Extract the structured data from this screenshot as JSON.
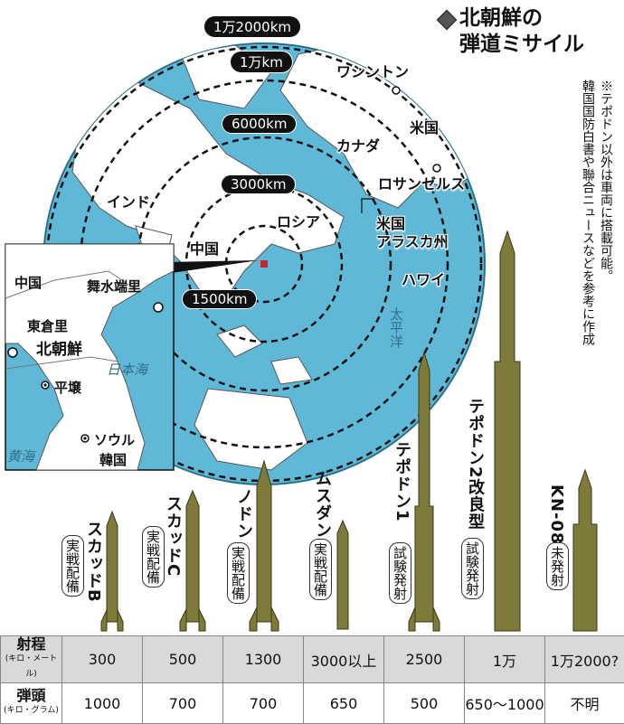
{
  "title": {
    "line1": "北朝鮮の",
    "line2": "弾道ミサイル"
  },
  "note": {
    "line1": "※テポドン以外は車両に搭載可能。",
    "line2": "韓国国防白書や聯合ニュースなどを参考に作成"
  },
  "rings": [
    {
      "label": "1万2000km"
    },
    {
      "label": "1万km"
    },
    {
      "label": "6000km"
    },
    {
      "label": "3000km"
    },
    {
      "label": "1500km"
    }
  ],
  "map_labels": {
    "washington": "ワシントン",
    "usa": "米国",
    "canada": "カナダ",
    "los_angeles": "ロサンゼルス",
    "india": "インド",
    "russia": "ロシア",
    "alaska_line1": "米国",
    "alaska_line2": "アラスカ州",
    "china": "中国",
    "hawaii": "ハワイ",
    "pacific": "太平洋"
  },
  "inset": {
    "china": "中国",
    "musudan_ri": "舞水端里",
    "tongchang_ri": "東倉里",
    "north_korea": "北朝鮮",
    "sea_of_japan": "日本海",
    "pyongyang": "平壌",
    "seoul": "ソウル",
    "south_korea": "韓国",
    "yellow_sea": "黄海"
  },
  "missiles": [
    {
      "name": "スカッドB",
      "status": "実戦配備"
    },
    {
      "name": "スカッドC",
      "status": "実戦配備"
    },
    {
      "name": "ノドン",
      "status": "実戦配備"
    },
    {
      "name": "ムスダン",
      "status": "実戦配備"
    },
    {
      "name": "テポドン1",
      "status": "試験発射"
    },
    {
      "name": "テポドン2改良型",
      "status": "試験発射"
    },
    {
      "name": "KN-08",
      "status": "未発射"
    }
  ],
  "table": {
    "range_header": "射程",
    "range_unit": "(キロ・メートル)",
    "warhead_header": "弾頭",
    "warhead_unit": "(キロ・グラム)",
    "ranges": [
      "300",
      "500",
      "1300",
      "3000以上",
      "2500",
      "1万",
      "1万2000?"
    ],
    "warheads": [
      "1000",
      "700",
      "700",
      "650",
      "500",
      "650〜1000",
      "不明"
    ]
  },
  "colors": {
    "ocean": "#5fb8d6",
    "land": "#ffffff",
    "missile": "#7d7a3a",
    "table_shade": "#d9d9d9"
  }
}
